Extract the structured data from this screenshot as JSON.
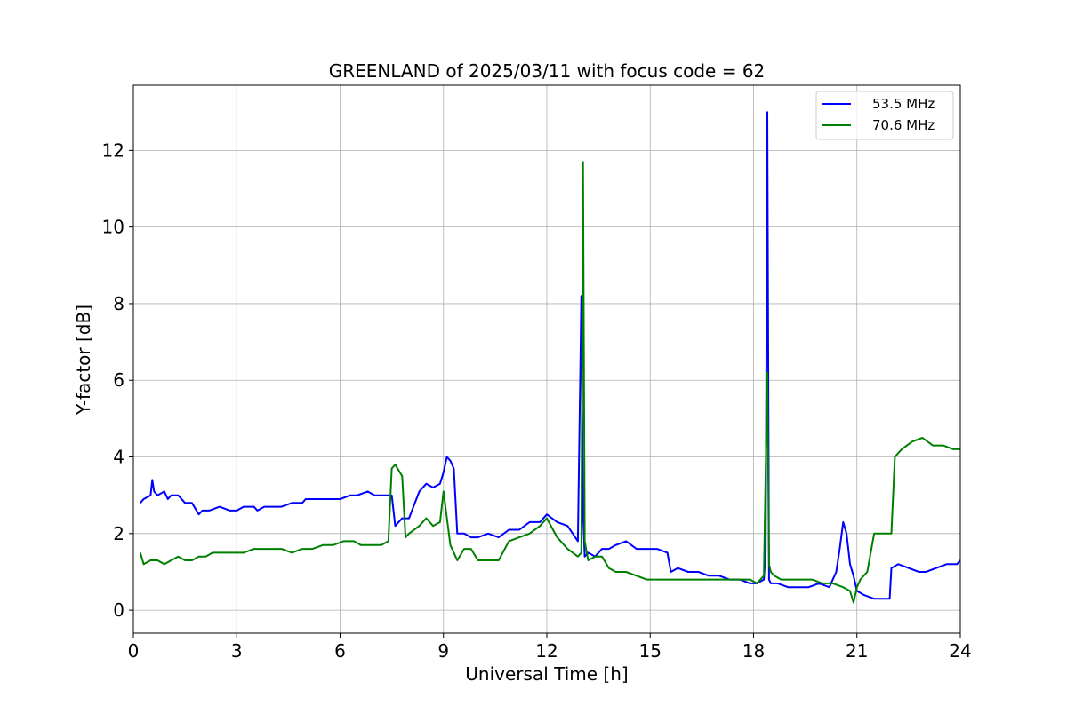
{
  "chart_data": {
    "type": "line",
    "title": "GREENLAND of 2025/03/11 with focus code = 62",
    "xlabel": "Universal Time [h]",
    "ylabel": "Y-factor [dB]",
    "xlim": [
      0,
      24
    ],
    "ylim": [
      -0.6,
      13.7
    ],
    "xticks": [
      0,
      3,
      6,
      9,
      12,
      15,
      18,
      21,
      24
    ],
    "yticks": [
      0,
      2,
      4,
      6,
      8,
      10,
      12
    ],
    "grid": true,
    "legend_position": "top-right",
    "series": [
      {
        "name": "53.5 MHz",
        "color": "#0000ff",
        "x": [
          0.2,
          0.3,
          0.5,
          0.55,
          0.6,
          0.7,
          0.9,
          1.0,
          1.1,
          1.3,
          1.5,
          1.7,
          1.9,
          2.0,
          2.2,
          2.5,
          2.8,
          3.0,
          3.2,
          3.4,
          3.5,
          3.6,
          3.8,
          4.0,
          4.3,
          4.6,
          4.9,
          5.0,
          5.3,
          5.6,
          6.0,
          6.3,
          6.5,
          6.8,
          7.0,
          7.3,
          7.5,
          7.6,
          7.8,
          8.0,
          8.3,
          8.5,
          8.7,
          8.9,
          9.0,
          9.1,
          9.2,
          9.3,
          9.4,
          9.6,
          9.8,
          10.0,
          10.3,
          10.6,
          10.9,
          11.2,
          11.5,
          11.8,
          12.0,
          12.3,
          12.6,
          12.9,
          13.0,
          13.05,
          13.1,
          13.2,
          13.4,
          13.6,
          13.8,
          14.0,
          14.3,
          14.6,
          14.9,
          15.2,
          15.5,
          15.6,
          15.8,
          16.1,
          16.4,
          16.7,
          17.0,
          17.3,
          17.6,
          17.9,
          18.1,
          18.3,
          18.35,
          18.4,
          18.45,
          18.5,
          18.7,
          19.0,
          19.3,
          19.6,
          19.9,
          20.2,
          20.4,
          20.5,
          20.6,
          20.7,
          20.8,
          20.9,
          21.0,
          21.2,
          21.5,
          21.8,
          21.95,
          22.0,
          22.2,
          22.5,
          22.8,
          23.0,
          23.3,
          23.6,
          23.9,
          24.0
        ],
        "y": [
          2.8,
          2.9,
          3.0,
          3.4,
          3.1,
          3.0,
          3.1,
          2.9,
          3.0,
          3.0,
          2.8,
          2.8,
          2.5,
          2.6,
          2.6,
          2.7,
          2.6,
          2.6,
          2.7,
          2.7,
          2.7,
          2.6,
          2.7,
          2.7,
          2.7,
          2.8,
          2.8,
          2.9,
          2.9,
          2.9,
          2.9,
          3.0,
          3.0,
          3.1,
          3.0,
          3.0,
          3.0,
          2.2,
          2.4,
          2.4,
          3.1,
          3.3,
          3.2,
          3.3,
          3.6,
          4.0,
          3.9,
          3.7,
          2.0,
          2.0,
          1.9,
          1.9,
          2.0,
          1.9,
          2.1,
          2.1,
          2.3,
          2.3,
          2.5,
          2.3,
          2.2,
          1.8,
          8.2,
          2.5,
          1.4,
          1.5,
          1.4,
          1.6,
          1.6,
          1.7,
          1.8,
          1.6,
          1.6,
          1.6,
          1.5,
          1.0,
          1.1,
          1.0,
          1.0,
          0.9,
          0.9,
          0.8,
          0.8,
          0.7,
          0.7,
          0.8,
          1.5,
          13.0,
          0.8,
          0.7,
          0.7,
          0.6,
          0.6,
          0.6,
          0.7,
          0.6,
          1.0,
          1.6,
          2.3,
          2.0,
          1.2,
          0.9,
          0.5,
          0.4,
          0.3,
          0.3,
          0.3,
          1.1,
          1.2,
          1.1,
          1.0,
          1.0,
          1.1,
          1.2,
          1.2,
          1.3
        ]
      },
      {
        "name": "70.6 MHz",
        "color": "#008000",
        "x": [
          0.2,
          0.3,
          0.5,
          0.7,
          0.9,
          1.1,
          1.3,
          1.5,
          1.7,
          1.9,
          2.1,
          2.3,
          2.6,
          2.9,
          3.2,
          3.5,
          3.8,
          4.0,
          4.3,
          4.6,
          4.9,
          5.2,
          5.5,
          5.8,
          6.1,
          6.4,
          6.6,
          6.9,
          7.2,
          7.4,
          7.5,
          7.6,
          7.8,
          7.9,
          8.0,
          8.3,
          8.5,
          8.7,
          8.9,
          9.0,
          9.2,
          9.4,
          9.6,
          9.8,
          10.0,
          10.3,
          10.6,
          10.9,
          11.2,
          11.5,
          11.8,
          12.0,
          12.3,
          12.6,
          12.9,
          13.0,
          13.05,
          13.1,
          13.2,
          13.4,
          13.6,
          13.8,
          14.0,
          14.3,
          14.6,
          14.9,
          15.2,
          15.5,
          15.8,
          16.1,
          16.4,
          16.7,
          17.0,
          17.3,
          17.6,
          17.9,
          18.1,
          18.3,
          18.4,
          18.45,
          18.5,
          18.6,
          18.8,
          19.1,
          19.4,
          19.7,
          20.0,
          20.3,
          20.6,
          20.8,
          20.9,
          21.0,
          21.1,
          21.3,
          21.5,
          21.8,
          22.0,
          22.1,
          22.3,
          22.6,
          22.9,
          23.2,
          23.5,
          23.8,
          24.0
        ],
        "y": [
          1.5,
          1.2,
          1.3,
          1.3,
          1.2,
          1.3,
          1.4,
          1.3,
          1.3,
          1.4,
          1.4,
          1.5,
          1.5,
          1.5,
          1.5,
          1.6,
          1.6,
          1.6,
          1.6,
          1.5,
          1.6,
          1.6,
          1.7,
          1.7,
          1.8,
          1.8,
          1.7,
          1.7,
          1.7,
          1.8,
          3.7,
          3.8,
          3.5,
          1.9,
          2.0,
          2.2,
          2.4,
          2.2,
          2.3,
          3.1,
          1.7,
          1.3,
          1.6,
          1.6,
          1.3,
          1.3,
          1.3,
          1.8,
          1.9,
          2.0,
          2.2,
          2.4,
          1.9,
          1.6,
          1.4,
          1.5,
          11.7,
          1.8,
          1.3,
          1.4,
          1.4,
          1.1,
          1.0,
          1.0,
          0.9,
          0.8,
          0.8,
          0.8,
          0.8,
          0.8,
          0.8,
          0.8,
          0.8,
          0.8,
          0.8,
          0.8,
          0.7,
          0.9,
          6.2,
          1.2,
          1.0,
          0.9,
          0.8,
          0.8,
          0.8,
          0.8,
          0.7,
          0.7,
          0.6,
          0.5,
          0.2,
          0.6,
          0.8,
          1.0,
          2.0,
          2.0,
          2.0,
          4.0,
          4.2,
          4.4,
          4.5,
          4.3,
          4.3,
          4.2,
          4.2
        ]
      }
    ]
  }
}
